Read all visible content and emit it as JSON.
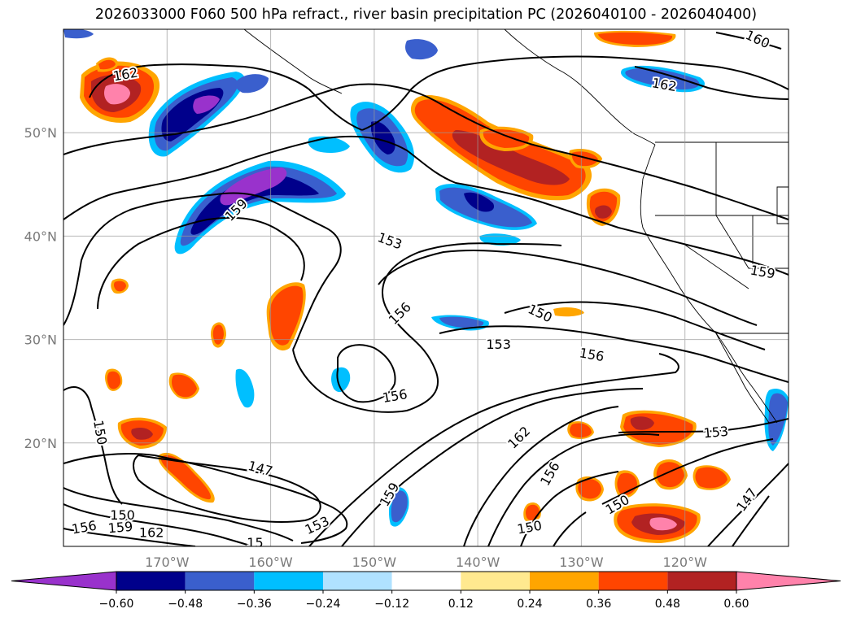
{
  "title": "2026033000 F060 500 hPa refract., river basin precipitation PC (2026040100 - 2026040400)",
  "map": {
    "lon_range": [
      -180,
      -110
    ],
    "lat_range": [
      10,
      60
    ],
    "lon_ticks": [
      {
        "value": -170,
        "label": "170°W"
      },
      {
        "value": -160,
        "label": "160°W"
      },
      {
        "value": -150,
        "label": "150°W"
      },
      {
        "value": -140,
        "label": "140°W"
      },
      {
        "value": -130,
        "label": "130°W"
      },
      {
        "value": -120,
        "label": "120°W"
      }
    ],
    "lat_ticks": [
      {
        "value": 20,
        "label": "20°N"
      },
      {
        "value": 30,
        "label": "30°N"
      },
      {
        "value": 40,
        "label": "40°N"
      },
      {
        "value": 50,
        "label": "50°N"
      }
    ],
    "grid": true
  },
  "contour_labels": [
    {
      "text": "162",
      "lon": -174.0,
      "lat": 55.6,
      "rot": -10
    },
    {
      "text": "160",
      "lon": -113.0,
      "lat": 59.0,
      "rot": 25
    },
    {
      "text": "162",
      "lon": -122.0,
      "lat": 54.6,
      "rot": 10
    },
    {
      "text": "159",
      "lon": -163.3,
      "lat": 42.5,
      "rot": -45
    },
    {
      "text": "153",
      "lon": -148.5,
      "lat": 39.5,
      "rot": 20
    },
    {
      "text": "159",
      "lon": -112.5,
      "lat": 36.5,
      "rot": 10
    },
    {
      "text": "156",
      "lon": -147.5,
      "lat": 32.5,
      "rot": -45
    },
    {
      "text": "150",
      "lon": -134.0,
      "lat": 32.5,
      "rot": 25
    },
    {
      "text": "153",
      "lon": -138.0,
      "lat": 29.5,
      "rot": 0
    },
    {
      "text": "156",
      "lon": -129.0,
      "lat": 28.5,
      "rot": 10
    },
    {
      "text": "156",
      "lon": -148.0,
      "lat": 24.5,
      "rot": -10
    },
    {
      "text": "150",
      "lon": -176.5,
      "lat": 21.0,
      "rot": 80
    },
    {
      "text": "153",
      "lon": -117.0,
      "lat": 21.0,
      "rot": -5
    },
    {
      "text": "162",
      "lon": -136.0,
      "lat": 20.5,
      "rot": -45
    },
    {
      "text": "147",
      "lon": -161.0,
      "lat": 17.5,
      "rot": 15
    },
    {
      "text": "156",
      "lon": -133.0,
      "lat": 17.0,
      "rot": -60
    },
    {
      "text": "159",
      "lon": -148.5,
      "lat": 15.0,
      "rot": -60
    },
    {
      "text": "147",
      "lon": -114.0,
      "lat": 14.5,
      "rot": -55
    },
    {
      "text": "150",
      "lon": -126.5,
      "lat": 14.0,
      "rot": -30
    },
    {
      "text": "150",
      "lon": -174.3,
      "lat": 13.0,
      "rot": 0
    },
    {
      "text": "153",
      "lon": -155.5,
      "lat": 12.0,
      "rot": -25
    },
    {
      "text": "150",
      "lon": -135.0,
      "lat": 11.8,
      "rot": -10
    },
    {
      "text": "156",
      "lon": -178.0,
      "lat": 11.8,
      "rot": -10
    },
    {
      "text": "159",
      "lon": -174.5,
      "lat": 11.8,
      "rot": -5
    },
    {
      "text": "162",
      "lon": -171.5,
      "lat": 11.3,
      "rot": 0
    },
    {
      "text": "15",
      "lon": -161.5,
      "lat": 10.3,
      "rot": 0
    }
  ],
  "colorbar": {
    "levels": [
      -0.6,
      -0.48,
      -0.36,
      -0.24,
      -0.12,
      0.12,
      0.24,
      0.36,
      0.48,
      0.6
    ],
    "tick_labels": [
      "−0.60",
      "−0.48",
      "−0.36",
      "−0.24",
      "−0.12",
      "0.12",
      "0.24",
      "0.36",
      "0.48",
      "0.60"
    ],
    "colors": [
      "#9932cc",
      "#00008b",
      "#3a5fcd",
      "#00bfff",
      "#b0e2ff",
      "#ffffff",
      "#ffe98f",
      "#ffa500",
      "#ff4500",
      "#b22222",
      "#ff82ab"
    ]
  }
}
